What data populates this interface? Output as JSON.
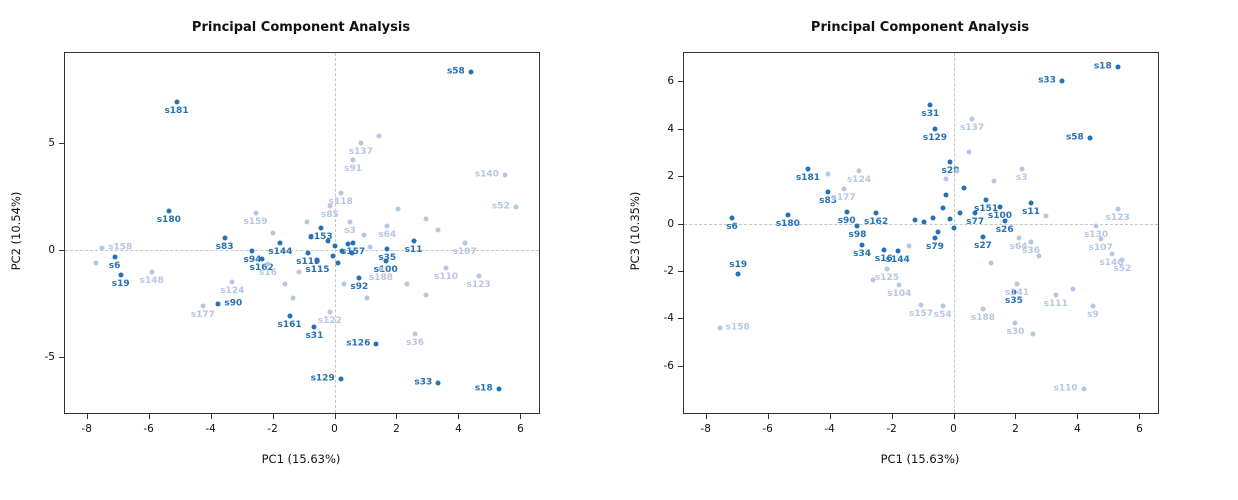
{
  "chart_data": [
    {
      "type": "scatter",
      "title": "Principal Component Analysis",
      "xlabel": "PC1 (15.63%)",
      "ylabel": "PC2 (10.54%)",
      "xlim": [
        -8.7,
        6.6
      ],
      "ylim": [
        -7.6,
        9.2
      ],
      "xticks": [
        -8,
        -6,
        -4,
        -2,
        0,
        2,
        4,
        6
      ],
      "yticks": [
        -5,
        0,
        5
      ],
      "grid": "dashed reference lines at x=0 and y=0",
      "legend": "none",
      "colors": {
        "dark": "#2471b5",
        "light": "#b6c6e3"
      },
      "points": [
        {
          "label": "s58",
          "x": 4.4,
          "y": 8.3,
          "c": "dark",
          "lp": "l"
        },
        {
          "label": "s181",
          "x": -5.1,
          "y": 6.9,
          "c": "dark"
        },
        {
          "label": "s180",
          "x": -5.35,
          "y": 1.85,
          "c": "dark"
        },
        {
          "label": "s83",
          "x": -3.55,
          "y": 0.55,
          "c": "dark"
        },
        {
          "label": "s6",
          "x": -7.1,
          "y": -0.3,
          "c": "dark"
        },
        {
          "label": "s19",
          "x": -6.9,
          "y": -1.15,
          "c": "dark"
        },
        {
          "label": "s94",
          "x": -2.65,
          "y": -0.05,
          "c": "dark"
        },
        {
          "label": "s162",
          "x": -2.35,
          "y": -0.4,
          "c": "dark"
        },
        {
          "label": "s144",
          "x": -1.75,
          "y": 0.35,
          "c": "dark"
        },
        {
          "label": "s90",
          "x": -3.75,
          "y": -2.5,
          "c": "dark",
          "lp": "r"
        },
        {
          "label": "s161",
          "x": -1.45,
          "y": -3.05,
          "c": "dark"
        },
        {
          "label": "s31",
          "x": -0.65,
          "y": -3.6,
          "c": "dark"
        },
        {
          "label": "s129",
          "x": 0.2,
          "y": -6.0,
          "c": "dark",
          "lp": "l"
        },
        {
          "label": "s126",
          "x": 1.35,
          "y": -4.4,
          "c": "dark",
          "lp": "l"
        },
        {
          "label": "s33",
          "x": 3.35,
          "y": -6.2,
          "c": "dark",
          "lp": "l"
        },
        {
          "label": "s18",
          "x": 5.3,
          "y": -6.5,
          "c": "dark",
          "lp": "l"
        },
        {
          "label": "s11",
          "x": 2.55,
          "y": 0.45,
          "c": "dark"
        },
        {
          "label": "s157",
          "x": 0.6,
          "y": 0.35,
          "c": "dark"
        },
        {
          "label": "s35",
          "x": 1.7,
          "y": 0.05,
          "c": "dark"
        },
        {
          "label": "s100",
          "x": 1.65,
          "y": -0.5,
          "c": "dark"
        },
        {
          "label": "s92",
          "x": 0.8,
          "y": -1.3,
          "c": "dark"
        },
        {
          "label": "s153",
          "x": -0.45,
          "y": 1.05,
          "c": "dark"
        },
        {
          "label": "s119",
          "x": -0.85,
          "y": -0.15,
          "c": "dark"
        },
        {
          "label": "s115",
          "x": -0.55,
          "y": -0.5,
          "c": "dark"
        },
        {
          "label": "",
          "x": 0.0,
          "y": 0.2,
          "c": "dark"
        },
        {
          "label": "",
          "x": 0.25,
          "y": -0.05,
          "c": "dark"
        },
        {
          "label": "",
          "x": -0.2,
          "y": 0.45,
          "c": "dark"
        },
        {
          "label": "",
          "x": 0.45,
          "y": 0.3,
          "c": "dark"
        },
        {
          "label": "",
          "x": 0.1,
          "y": -0.6,
          "c": "dark"
        },
        {
          "label": "",
          "x": -0.05,
          "y": -0.25,
          "c": "dark"
        },
        {
          "label": "",
          "x": 0.55,
          "y": -0.15,
          "c": "dark"
        },
        {
          "label": "",
          "x": -0.75,
          "y": 0.6,
          "c": "dark"
        },
        {
          "label": "s158",
          "x": -7.5,
          "y": 0.1,
          "c": "light",
          "lp": "r"
        },
        {
          "label": "s148",
          "x": -5.9,
          "y": -1.0,
          "c": "light"
        },
        {
          "label": "s16",
          "x": -2.15,
          "y": -0.65,
          "c": "light"
        },
        {
          "label": "s124",
          "x": -3.3,
          "y": -1.5,
          "c": "light"
        },
        {
          "label": "s177",
          "x": -4.25,
          "y": -2.6,
          "c": "light"
        },
        {
          "label": "s159",
          "x": -2.55,
          "y": 1.75,
          "c": "light"
        },
        {
          "label": "s137",
          "x": 0.85,
          "y": 5.0,
          "c": "light"
        },
        {
          "label": "s91",
          "x": 0.6,
          "y": 4.2,
          "c": "light"
        },
        {
          "label": "s140",
          "x": 5.5,
          "y": 3.5,
          "c": "light",
          "lp": "l"
        },
        {
          "label": "s52",
          "x": 5.85,
          "y": 2.0,
          "c": "light",
          "lp": "l"
        },
        {
          "label": "s118",
          "x": 0.2,
          "y": 2.65,
          "c": "light"
        },
        {
          "label": "s85",
          "x": -0.15,
          "y": 2.05,
          "c": "light"
        },
        {
          "label": "s3",
          "x": 0.5,
          "y": 1.3,
          "c": "light"
        },
        {
          "label": "s64",
          "x": 1.7,
          "y": 1.15,
          "c": "light"
        },
        {
          "label": "s107",
          "x": 4.2,
          "y": 0.35,
          "c": "light"
        },
        {
          "label": "s110",
          "x": 3.6,
          "y": -0.85,
          "c": "light"
        },
        {
          "label": "s123",
          "x": 4.65,
          "y": -1.2,
          "c": "light"
        },
        {
          "label": "s188",
          "x": 1.5,
          "y": -0.9,
          "c": "light"
        },
        {
          "label": "s122",
          "x": -0.15,
          "y": -2.9,
          "c": "light"
        },
        {
          "label": "s36",
          "x": 2.6,
          "y": -3.9,
          "c": "light"
        },
        {
          "label": "",
          "x": 1.45,
          "y": 5.35,
          "c": "light"
        },
        {
          "label": "",
          "x": -7.7,
          "y": -0.6,
          "c": "light"
        },
        {
          "label": "",
          "x": 2.05,
          "y": 1.9,
          "c": "light"
        },
        {
          "label": "",
          "x": 2.95,
          "y": 1.45,
          "c": "light"
        },
        {
          "label": "",
          "x": 3.35,
          "y": 0.95,
          "c": "light"
        },
        {
          "label": "",
          "x": 2.35,
          "y": -1.6,
          "c": "light"
        },
        {
          "label": "",
          "x": 2.95,
          "y": -2.1,
          "c": "light"
        },
        {
          "label": "",
          "x": 1.05,
          "y": -2.25,
          "c": "light"
        },
        {
          "label": "",
          "x": -1.35,
          "y": -2.25,
          "c": "light"
        },
        {
          "label": "",
          "x": -0.9,
          "y": 1.3,
          "c": "light"
        },
        {
          "label": "",
          "x": 0.95,
          "y": 0.7,
          "c": "light"
        },
        {
          "label": "",
          "x": 1.15,
          "y": 0.15,
          "c": "light"
        },
        {
          "label": "",
          "x": -1.15,
          "y": -1.0,
          "c": "light"
        },
        {
          "label": "",
          "x": 0.3,
          "y": -1.6,
          "c": "light"
        },
        {
          "label": "",
          "x": -2.0,
          "y": 0.8,
          "c": "light"
        },
        {
          "label": "",
          "x": -1.6,
          "y": -1.6,
          "c": "light"
        }
      ]
    },
    {
      "type": "scatter",
      "title": "Principal Component Analysis",
      "xlabel": "PC1 (15.63%)",
      "ylabel": "PC3 (10.35%)",
      "xlim": [
        -8.7,
        6.6
      ],
      "ylim": [
        -8.0,
        7.2
      ],
      "xticks": [
        -8,
        -6,
        -4,
        -2,
        0,
        2,
        4,
        6
      ],
      "yticks": [
        -6,
        -4,
        -2,
        0,
        2,
        4,
        6
      ],
      "grid": "dashed reference lines at x=0 and y=0",
      "legend": "none",
      "colors": {
        "dark": "#2471b5",
        "light": "#b6c6e3"
      },
      "points": [
        {
          "label": "s18",
          "x": 5.3,
          "y": 6.6,
          "c": "dark",
          "lp": "l"
        },
        {
          "label": "s33",
          "x": 3.5,
          "y": 6.0,
          "c": "dark",
          "lp": "l"
        },
        {
          "label": "s31",
          "x": -0.75,
          "y": 5.0,
          "c": "dark"
        },
        {
          "label": "s129",
          "x": -0.6,
          "y": 4.0,
          "c": "dark"
        },
        {
          "label": "s58",
          "x": 4.4,
          "y": 3.6,
          "c": "dark",
          "lp": "l"
        },
        {
          "label": "s181",
          "x": -4.7,
          "y": 2.3,
          "c": "dark"
        },
        {
          "label": "s83",
          "x": -4.05,
          "y": 1.35,
          "c": "dark"
        },
        {
          "label": "s180",
          "x": -5.35,
          "y": 0.35,
          "c": "dark"
        },
        {
          "label": "s6",
          "x": -7.15,
          "y": 0.25,
          "c": "dark"
        },
        {
          "label": "s19",
          "x": -6.95,
          "y": -2.15,
          "c": "dark",
          "lp": "a"
        },
        {
          "label": "s90",
          "x": -3.45,
          "y": 0.5,
          "c": "dark"
        },
        {
          "label": "s98",
          "x": -3.1,
          "y": -0.1,
          "c": "dark"
        },
        {
          "label": "s34",
          "x": -2.95,
          "y": -0.9,
          "c": "dark"
        },
        {
          "label": "s16",
          "x": -2.25,
          "y": -1.1,
          "c": "dark"
        },
        {
          "label": "s144",
          "x": -1.8,
          "y": -1.15,
          "c": "dark"
        },
        {
          "label": "s162",
          "x": -2.5,
          "y": 0.45,
          "c": "dark"
        },
        {
          "label": "s151",
          "x": 1.05,
          "y": 1.0,
          "c": "dark"
        },
        {
          "label": "s77",
          "x": 0.7,
          "y": 0.45,
          "c": "dark"
        },
        {
          "label": "s100",
          "x": 1.5,
          "y": 0.7,
          "c": "dark"
        },
        {
          "label": "s11",
          "x": 2.5,
          "y": 0.85,
          "c": "dark"
        },
        {
          "label": "s26",
          "x": 1.65,
          "y": 0.1,
          "c": "dark"
        },
        {
          "label": "s27",
          "x": 0.95,
          "y": -0.55,
          "c": "dark"
        },
        {
          "label": "s79",
          "x": -0.6,
          "y": -0.6,
          "c": "dark"
        },
        {
          "label": "s35",
          "x": 1.95,
          "y": -2.9,
          "c": "dark"
        },
        {
          "label": "s28",
          "x": -0.1,
          "y": 2.6,
          "c": "dark"
        },
        {
          "label": "",
          "x": -0.35,
          "y": 0.65,
          "c": "dark"
        },
        {
          "label": "",
          "x": -0.65,
          "y": 0.25,
          "c": "dark"
        },
        {
          "label": "",
          "x": -0.1,
          "y": 0.2,
          "c": "dark"
        },
        {
          "label": "",
          "x": 0.2,
          "y": 0.45,
          "c": "dark"
        },
        {
          "label": "",
          "x": -0.95,
          "y": 0.05,
          "c": "dark"
        },
        {
          "label": "",
          "x": 0.0,
          "y": -0.2,
          "c": "dark"
        },
        {
          "label": "",
          "x": -0.5,
          "y": -0.35,
          "c": "dark"
        },
        {
          "label": "",
          "x": -1.25,
          "y": 0.15,
          "c": "dark"
        },
        {
          "label": "",
          "x": -0.25,
          "y": 1.2,
          "c": "dark"
        },
        {
          "label": "",
          "x": 0.35,
          "y": 1.5,
          "c": "dark"
        },
        {
          "label": "s137",
          "x": 0.6,
          "y": 4.4,
          "c": "light"
        },
        {
          "label": "s124",
          "x": -3.05,
          "y": 2.2,
          "c": "light"
        },
        {
          "label": "s177",
          "x": -3.55,
          "y": 1.45,
          "c": "light"
        },
        {
          "label": "s3",
          "x": 2.2,
          "y": 2.3,
          "c": "light"
        },
        {
          "label": "s123",
          "x": 5.3,
          "y": 0.6,
          "c": "light"
        },
        {
          "label": "s130",
          "x": 4.6,
          "y": -0.1,
          "c": "light"
        },
        {
          "label": "s107",
          "x": 4.75,
          "y": -0.65,
          "c": "light"
        },
        {
          "label": "s140",
          "x": 5.1,
          "y": -1.3,
          "c": "light"
        },
        {
          "label": "s52",
          "x": 5.45,
          "y": -1.55,
          "c": "light"
        },
        {
          "label": "s141",
          "x": 2.05,
          "y": -2.55,
          "c": "light"
        },
        {
          "label": "s111",
          "x": 3.3,
          "y": -3.0,
          "c": "light"
        },
        {
          "label": "s9",
          "x": 4.5,
          "y": -3.5,
          "c": "light"
        },
        {
          "label": "s30",
          "x": 2.0,
          "y": -4.2,
          "c": "light"
        },
        {
          "label": "s158",
          "x": -7.55,
          "y": -4.4,
          "c": "light",
          "lp": "r"
        },
        {
          "label": "s104",
          "x": -1.75,
          "y": -2.6,
          "c": "light"
        },
        {
          "label": "s125",
          "x": -2.15,
          "y": -1.9,
          "c": "light"
        },
        {
          "label": "s188",
          "x": 0.95,
          "y": -3.6,
          "c": "light"
        },
        {
          "label": "s54",
          "x": -0.35,
          "y": -3.5,
          "c": "light"
        },
        {
          "label": "s157",
          "x": -1.05,
          "y": -3.45,
          "c": "light"
        },
        {
          "label": "s110",
          "x": 4.2,
          "y": -7.0,
          "c": "light",
          "lp": "l"
        },
        {
          "label": "s64",
          "x": 2.1,
          "y": -0.6,
          "c": "light"
        },
        {
          "label": "s36",
          "x": 2.5,
          "y": -0.8,
          "c": "light"
        },
        {
          "label": "",
          "x": -4.05,
          "y": 2.1,
          "c": "light"
        },
        {
          "label": "",
          "x": 0.5,
          "y": 3.0,
          "c": "light"
        },
        {
          "label": "",
          "x": 1.3,
          "y": 1.8,
          "c": "light"
        },
        {
          "label": "",
          "x": -0.25,
          "y": 1.9,
          "c": "light"
        },
        {
          "label": "",
          "x": 3.0,
          "y": 0.3,
          "c": "light"
        },
        {
          "label": "",
          "x": 2.75,
          "y": -1.35,
          "c": "light"
        },
        {
          "label": "",
          "x": 1.2,
          "y": -1.65,
          "c": "light"
        },
        {
          "label": "",
          "x": -1.45,
          "y": -0.95,
          "c": "light"
        },
        {
          "label": "",
          "x": 3.85,
          "y": -2.75,
          "c": "light"
        },
        {
          "label": "",
          "x": 2.55,
          "y": -4.65,
          "c": "light"
        },
        {
          "label": "",
          "x": -2.6,
          "y": -2.4,
          "c": "light"
        },
        {
          "label": "",
          "x": 0.1,
          "y": 2.2,
          "c": "light"
        }
      ]
    }
  ]
}
